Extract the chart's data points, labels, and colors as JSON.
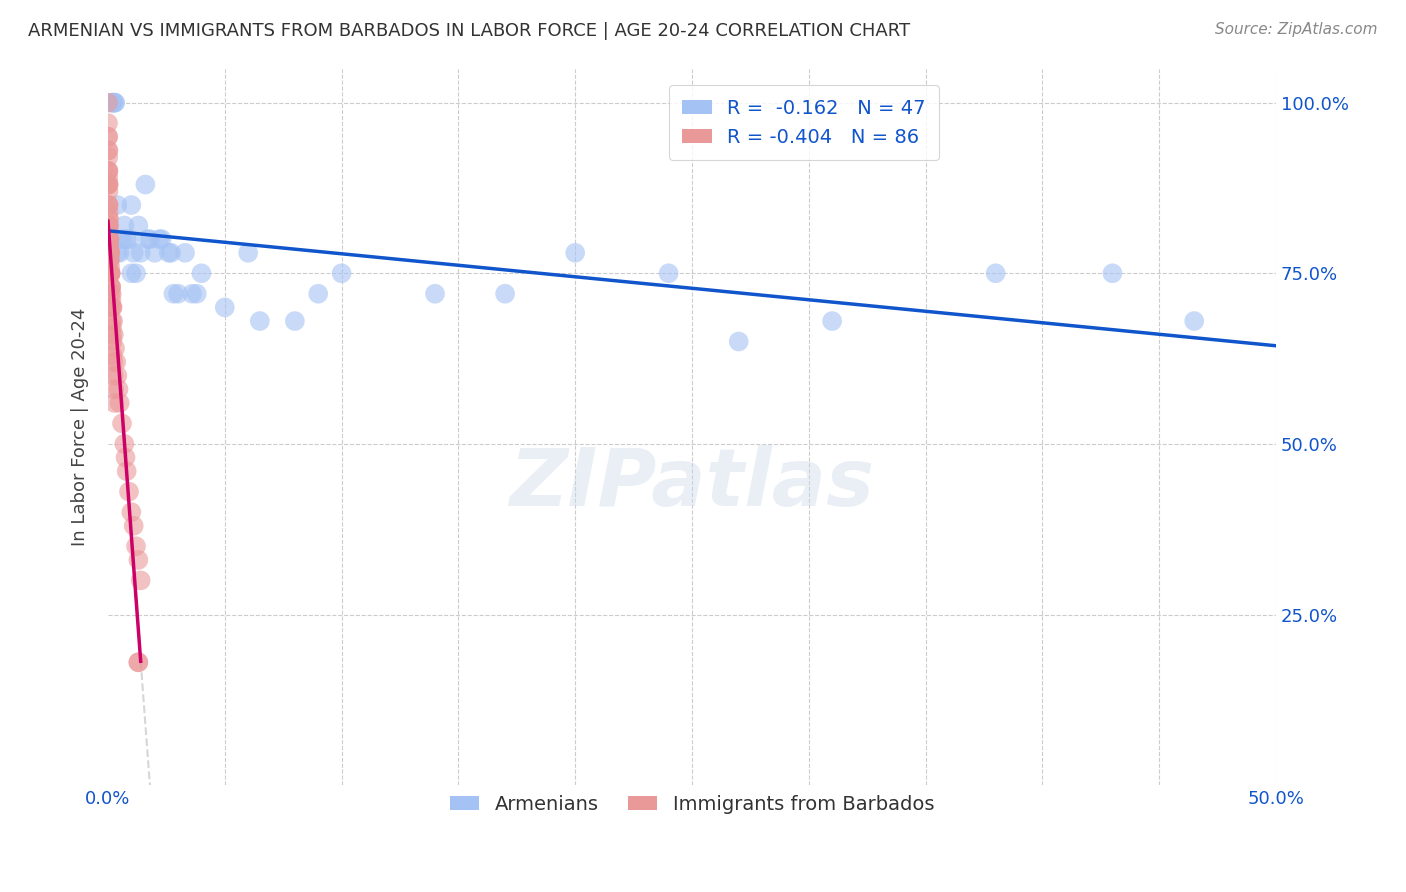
{
  "title": "ARMENIAN VS IMMIGRANTS FROM BARBADOS IN LABOR FORCE | AGE 20-24 CORRELATION CHART",
  "source": "Source: ZipAtlas.com",
  "ylabel": "In Labor Force | Age 20-24",
  "xlim": [
    0.0,
    0.5
  ],
  "ylim": [
    0.0,
    1.05
  ],
  "ytick_vals": [
    0.0,
    0.25,
    0.5,
    0.75,
    1.0
  ],
  "ytick_labels": [
    "",
    "25.0%",
    "50.0%",
    "75.0%",
    "100.0%"
  ],
  "xtick_vals": [
    0.0,
    0.05,
    0.1,
    0.15,
    0.2,
    0.25,
    0.3,
    0.35,
    0.4,
    0.45,
    0.5
  ],
  "xtick_labels": [
    "0.0%",
    "",
    "",
    "",
    "",
    "",
    "",
    "",
    "",
    "",
    "50.0%"
  ],
  "blue_R": -0.162,
  "blue_N": 47,
  "pink_R": -0.404,
  "pink_N": 86,
  "blue_color": "#a4c2f4",
  "pink_color": "#ea9999",
  "blue_line_color": "#1155cc",
  "pink_line_color": "#cc0066",
  "dash_line_color": "#cccccc",
  "watermark": "ZIPatlas",
  "legend_label_blue": "Armenians",
  "legend_label_pink": "Immigrants from Barbados",
  "blue_x": [
    0.002,
    0.002,
    0.002,
    0.003,
    0.003,
    0.004,
    0.004,
    0.005,
    0.006,
    0.007,
    0.008,
    0.009,
    0.01,
    0.01,
    0.011,
    0.012,
    0.013,
    0.014,
    0.016,
    0.017,
    0.018,
    0.02,
    0.022,
    0.023,
    0.026,
    0.027,
    0.028,
    0.03,
    0.033,
    0.036,
    0.038,
    0.04,
    0.05,
    0.06,
    0.065,
    0.08,
    0.09,
    0.1,
    0.14,
    0.2,
    0.24,
    0.31,
    0.17,
    0.27,
    0.38,
    0.43,
    0.465
  ],
  "blue_y": [
    1.0,
    1.0,
    1.0,
    1.0,
    1.0,
    0.85,
    0.78,
    0.78,
    0.8,
    0.82,
    0.8,
    0.8,
    0.85,
    0.75,
    0.78,
    0.75,
    0.82,
    0.78,
    0.88,
    0.8,
    0.8,
    0.78,
    0.8,
    0.8,
    0.78,
    0.78,
    0.72,
    0.72,
    0.78,
    0.72,
    0.72,
    0.75,
    0.7,
    0.78,
    0.68,
    0.68,
    0.72,
    0.75,
    0.72,
    0.78,
    0.75,
    0.68,
    0.72,
    0.65,
    0.75,
    0.75,
    0.68
  ],
  "pink_x": [
    0.0,
    0.0,
    0.0,
    0.0,
    0.0,
    0.0,
    0.0001,
    0.0001,
    0.0001,
    0.0001,
    0.0001,
    0.0001,
    0.0002,
    0.0002,
    0.0002,
    0.0002,
    0.0002,
    0.0002,
    0.0003,
    0.0003,
    0.0003,
    0.0003,
    0.0004,
    0.0004,
    0.0005,
    0.0005,
    0.0006,
    0.0006,
    0.0007,
    0.0007,
    0.0008,
    0.0009,
    0.0009,
    0.001,
    0.001,
    0.0011,
    0.0012,
    0.0013,
    0.0014,
    0.0015,
    0.0016,
    0.0018,
    0.002,
    0.0022,
    0.0025,
    0.003,
    0.0035,
    0.004,
    0.0045,
    0.005,
    0.006,
    0.007,
    0.0075,
    0.008,
    0.009,
    0.01,
    0.011,
    0.012,
    0.013,
    0.014,
    0.0015,
    0.0016,
    0.0017,
    0.0018,
    0.0019,
    0.002,
    0.0022,
    0.0024,
    0.0026,
    0.0028,
    0.0008,
    0.0009,
    0.001,
    0.0011,
    0.0012,
    0.0004,
    0.0005,
    0.0006,
    0.0007,
    0.0003,
    0.0002,
    0.0001,
    0.013,
    0.0003,
    0.0004,
    0.013
  ],
  "pink_y": [
    1.0,
    0.97,
    0.95,
    0.93,
    0.9,
    0.88,
    0.95,
    0.92,
    0.9,
    0.88,
    0.85,
    0.82,
    0.93,
    0.9,
    0.88,
    0.85,
    0.82,
    0.8,
    0.88,
    0.85,
    0.82,
    0.79,
    0.83,
    0.8,
    0.82,
    0.79,
    0.8,
    0.77,
    0.8,
    0.77,
    0.78,
    0.78,
    0.75,
    0.78,
    0.75,
    0.75,
    0.75,
    0.73,
    0.73,
    0.71,
    0.72,
    0.7,
    0.7,
    0.68,
    0.66,
    0.64,
    0.62,
    0.6,
    0.58,
    0.56,
    0.53,
    0.5,
    0.48,
    0.46,
    0.43,
    0.4,
    0.38,
    0.35,
    0.33,
    0.3,
    0.7,
    0.68,
    0.67,
    0.66,
    0.65,
    0.63,
    0.62,
    0.6,
    0.58,
    0.56,
    0.77,
    0.76,
    0.75,
    0.73,
    0.72,
    0.8,
    0.79,
    0.78,
    0.77,
    0.83,
    0.87,
    0.89,
    0.18,
    0.84,
    0.81,
    0.18
  ]
}
